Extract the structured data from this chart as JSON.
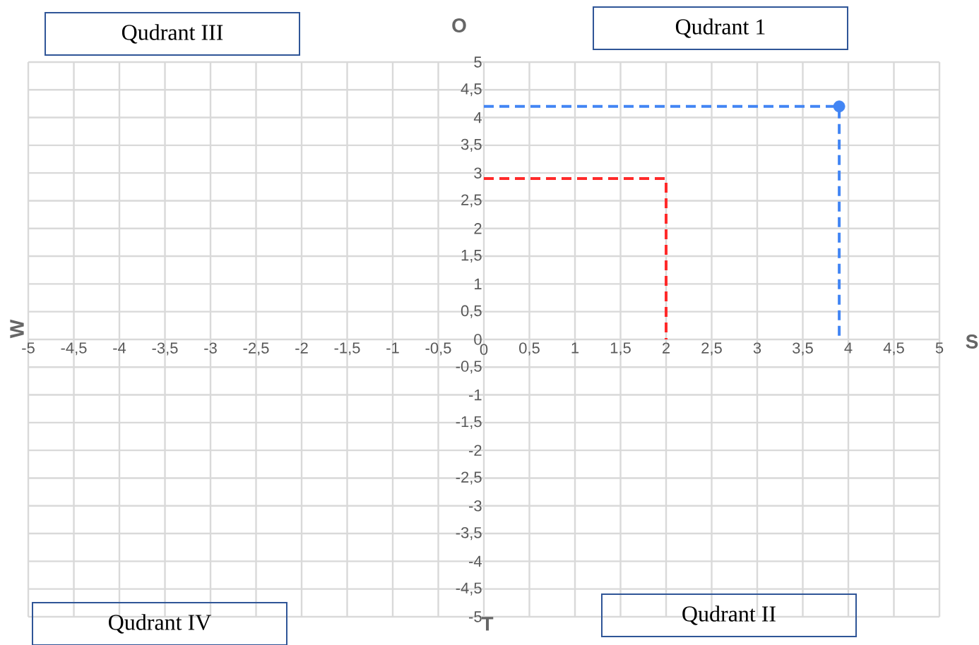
{
  "chart_data": {
    "type": "line",
    "xlabel": "S",
    "ylabel": "W",
    "annotations": [
      "Qudrant III",
      "Qudrant 1",
      "Qudrant IV",
      "Qudrant II",
      "O",
      "T"
    ],
    "xlim": [
      -5,
      5
    ],
    "ylim": [
      -5,
      5
    ],
    "xticks": [
      -5,
      {
        "value": -4.5,
        "label": "-4,5"
      },
      -4,
      {
        "value": -3.5,
        "label": "-3,5"
      },
      -3,
      {
        "value": -2.5,
        "label": "-2,5"
      },
      -2,
      {
        "value": -1.5,
        "label": "-1,5"
      },
      -1,
      {
        "value": -0.5,
        "label": "-0,5"
      },
      0,
      {
        "value": 0.5,
        "label": "0,5"
      },
      1,
      {
        "value": 1.5,
        "label": "1,5"
      },
      2,
      {
        "value": 2.5,
        "label": "2,5"
      },
      3,
      {
        "value": 3.5,
        "label": "3,5"
      },
      4,
      {
        "value": 4.5,
        "label": "4,5"
      },
      5
    ],
    "yticks": [
      -5,
      {
        "value": -4.5,
        "label": "-4,5"
      },
      -4,
      {
        "value": -3.5,
        "label": "-3,5"
      },
      -3,
      {
        "value": -2.5,
        "label": "-2,5"
      },
      -2,
      {
        "value": -1.5,
        "label": "-1,5"
      },
      -1,
      {
        "value": -0.5,
        "label": "-0,5"
      },
      0,
      {
        "value": 0.5,
        "label": "0,5"
      },
      1,
      {
        "value": 1.5,
        "label": "1,5"
      },
      2,
      {
        "value": 2.5,
        "label": "2,5"
      },
      3,
      {
        "value": 3.5,
        "label": "3,5"
      },
      4,
      {
        "value": 4.5,
        "label": "4,5"
      },
      5
    ],
    "grid": true,
    "series": [
      {
        "type": "line",
        "color": "#ff2a2a",
        "line_style": "dashed",
        "x": [
          0,
          2,
          2
        ],
        "values": [
          2.9,
          2.9,
          0
        ]
      },
      {
        "type": "line",
        "color": "#4285f4",
        "line_style": "dashed",
        "x": [
          0,
          3.9,
          3.9
        ],
        "values": [
          4.2,
          4.2,
          0
        ]
      },
      {
        "type": "scatter",
        "color": "#4285f4",
        "marker": "circle",
        "x": [
          3.9
        ],
        "values": [
          4.2
        ]
      }
    ]
  }
}
